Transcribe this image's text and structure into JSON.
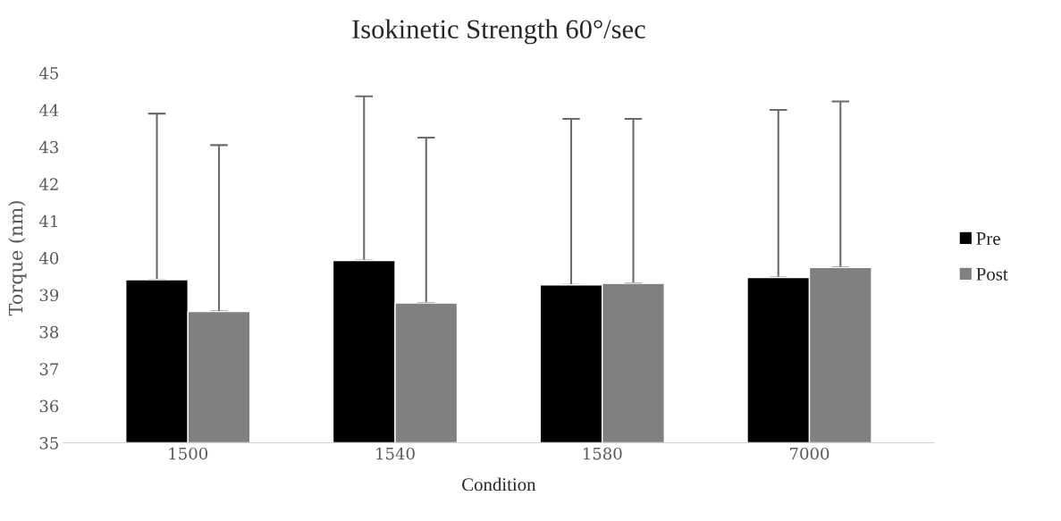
{
  "chart_data": {
    "type": "bar",
    "title": "Isokinetic Strength 60°/sec",
    "xlabel": "Condition",
    "ylabel": "Torque (nm)",
    "categories": [
      "1500",
      "1540",
      "1580",
      "7000"
    ],
    "series": [
      {
        "name": "Pre",
        "color": "#000000",
        "values": [
          39.41,
          39.93,
          39.27,
          39.47
        ],
        "errors": [
          [
            39.41,
            43.9
          ],
          [
            39.93,
            44.37
          ],
          [
            39.27,
            43.76
          ],
          [
            39.47,
            44.0
          ]
        ]
      },
      {
        "name": "Post",
        "color": "#808080",
        "values": [
          38.55,
          38.78,
          39.31,
          39.74
        ],
        "errors": [
          [
            38.55,
            43.05
          ],
          [
            38.78,
            43.25
          ],
          [
            39.31,
            43.76
          ],
          [
            39.74,
            44.23
          ]
        ]
      }
    ],
    "ylim": [
      35,
      45
    ],
    "yticks": [
      35,
      36,
      37,
      38,
      39,
      40,
      41,
      42,
      43,
      44,
      45
    ],
    "grid": false,
    "legend": "right"
  }
}
